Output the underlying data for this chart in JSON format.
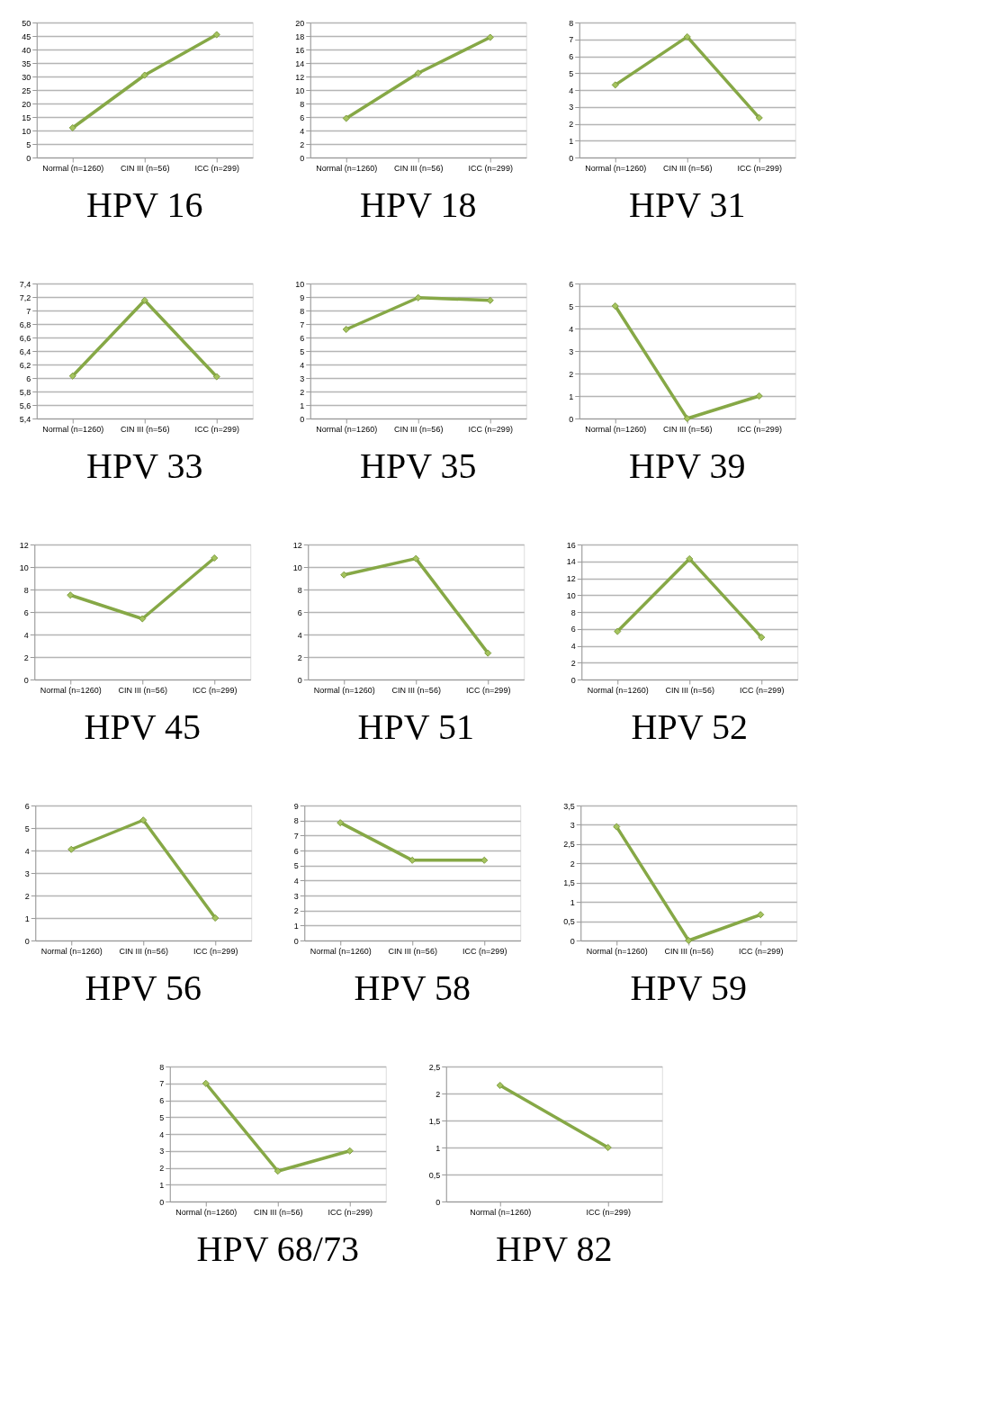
{
  "chart_data": [
    {
      "type": "line",
      "title": "HPV 16",
      "categories": [
        "Normal (n=1260)",
        "CIN III (n=56)",
        "ICC (n=299)"
      ],
      "values": [
        11,
        30.5,
        45.5
      ],
      "color": "#86a846",
      "ylim": [
        0,
        50
      ],
      "yticks": [
        0,
        5,
        10,
        15,
        20,
        25,
        30,
        35,
        40,
        45,
        50
      ],
      "grid": "y",
      "marker": "diamond",
      "line_style": "solid"
    },
    {
      "type": "line",
      "title": "HPV 18",
      "categories": [
        "Normal (n=1260)",
        "CIN III (n=56)",
        "ICC (n=299)"
      ],
      "values": [
        5.8,
        12.5,
        17.8
      ],
      "color": "#86a846",
      "ylim": [
        0,
        20
      ],
      "yticks": [
        0,
        2,
        4,
        6,
        8,
        10,
        12,
        14,
        16,
        18,
        20
      ],
      "grid": "y",
      "marker": "diamond",
      "line_style": "solid"
    },
    {
      "type": "line",
      "title": "HPV 31",
      "categories": [
        "Normal (n=1260)",
        "CIN III (n=56)",
        "ICC (n=299)"
      ],
      "values": [
        4.3,
        7.15,
        2.35
      ],
      "color": "#86a846",
      "ylim": [
        0,
        8
      ],
      "yticks": [
        0,
        1,
        2,
        3,
        4,
        5,
        6,
        7,
        8
      ],
      "grid": "y",
      "marker": "diamond",
      "line_style": "solid"
    },
    {
      "type": "line",
      "title": "HPV 33",
      "categories": [
        "Normal (n=1260)",
        "CIN III (n=56)",
        "ICC (n=299)"
      ],
      "values": [
        6.03,
        7.15,
        6.02
      ],
      "color": "#86a846",
      "ylim": [
        5.4,
        7.4
      ],
      "yticks": [
        {
          "value": 5.4,
          "label": "5,4"
        },
        {
          "value": 5.6,
          "label": "5,6"
        },
        {
          "value": 5.8,
          "label": "5,8"
        },
        6,
        {
          "value": 6.2,
          "label": "6,2"
        },
        {
          "value": 6.4,
          "label": "6,4"
        },
        {
          "value": 6.6,
          "label": "6,6"
        },
        {
          "value": 6.8,
          "label": "6,8"
        },
        7,
        {
          "value": 7.2,
          "label": "7,2"
        },
        {
          "value": 7.4,
          "label": "7,4"
        }
      ],
      "grid": "y",
      "marker": "diamond",
      "line_style": "solid"
    },
    {
      "type": "line",
      "title": "HPV 35",
      "categories": [
        "Normal (n=1260)",
        "CIN III (n=56)",
        "ICC (n=299)"
      ],
      "values": [
        6.6,
        8.95,
        8.75
      ],
      "color": "#86a846",
      "ylim": [
        0,
        10
      ],
      "yticks": [
        0,
        1,
        2,
        3,
        4,
        5,
        6,
        7,
        8,
        9,
        10
      ],
      "grid": "y",
      "marker": "diamond",
      "line_style": "solid"
    },
    {
      "type": "line",
      "title": "HPV 39",
      "categories": [
        "Normal (n=1260)",
        "CIN III (n=56)",
        "ICC (n=299)"
      ],
      "values": [
        5,
        0,
        1
      ],
      "color": "#86a846",
      "ylim": [
        0,
        6
      ],
      "yticks": [
        0,
        1,
        2,
        3,
        4,
        5,
        6
      ],
      "grid": "y",
      "marker": "diamond",
      "line_style": "solid"
    },
    {
      "type": "line",
      "title": "HPV 45",
      "categories": [
        "Normal (n=1260)",
        "CIN III (n=56)",
        "ICC (n=299)"
      ],
      "values": [
        7.5,
        5.4,
        10.8
      ],
      "color": "#86a846",
      "ylim": [
        0,
        12
      ],
      "yticks": [
        0,
        2,
        4,
        6,
        8,
        10,
        12
      ],
      "grid": "y",
      "marker": "diamond",
      "line_style": "solid"
    },
    {
      "type": "line",
      "title": "HPV 51",
      "categories": [
        "Normal (n=1260)",
        "CIN III (n=56)",
        "ICC (n=299)"
      ],
      "values": [
        9.3,
        10.75,
        2.35
      ],
      "color": "#86a846",
      "ylim": [
        0,
        12
      ],
      "yticks": [
        0,
        2,
        4,
        6,
        8,
        10,
        12
      ],
      "grid": "y",
      "marker": "diamond",
      "line_style": "solid"
    },
    {
      "type": "line",
      "title": "HPV 52",
      "categories": [
        "Normal (n=1260)",
        "CIN III (n=56)",
        "ICC (n=299)"
      ],
      "values": [
        5.7,
        14.3,
        5
      ],
      "color": "#86a846",
      "ylim": [
        0,
        16
      ],
      "yticks": [
        0,
        2,
        4,
        6,
        8,
        10,
        12,
        14,
        16
      ],
      "grid": "y",
      "marker": "diamond",
      "line_style": "solid"
    },
    {
      "type": "line",
      "title": "HPV 56",
      "categories": [
        "Normal (n=1260)",
        "CIN III (n=56)",
        "ICC (n=299)"
      ],
      "values": [
        4.05,
        5.35,
        1
      ],
      "color": "#86a846",
      "ylim": [
        0,
        6
      ],
      "yticks": [
        0,
        1,
        2,
        3,
        4,
        5,
        6
      ],
      "grid": "y",
      "marker": "diamond",
      "line_style": "solid"
    },
    {
      "type": "line",
      "title": "HPV 58",
      "categories": [
        "Normal (n=1260)",
        "CIN III (n=56)",
        "ICC (n=299)"
      ],
      "values": [
        7.85,
        5.35,
        5.35
      ],
      "color": "#86a846",
      "ylim": [
        0,
        9
      ],
      "yticks": [
        0,
        1,
        2,
        3,
        4,
        5,
        6,
        7,
        8,
        9
      ],
      "grid": "y",
      "marker": "diamond",
      "line_style": "solid"
    },
    {
      "type": "line",
      "title": "HPV 59",
      "categories": [
        "Normal (n=1260)",
        "CIN III (n=56)",
        "ICC (n=299)"
      ],
      "values": [
        2.95,
        0,
        0.67
      ],
      "color": "#86a846",
      "ylim": [
        0,
        3.5
      ],
      "yticks": [
        0,
        {
          "value": 0.5,
          "label": "0,5"
        },
        1,
        {
          "value": 1.5,
          "label": "1,5"
        },
        2,
        {
          "value": 2.5,
          "label": "2,5"
        },
        3,
        {
          "value": 3.5,
          "label": "3,5"
        }
      ],
      "grid": "y",
      "marker": "diamond",
      "line_style": "solid"
    },
    {
      "type": "line",
      "title": "HPV 68/73",
      "categories": [
        "Normal (n=1260)",
        "CIN III (n=56)",
        "ICC (n=299)"
      ],
      "values": [
        7,
        1.8,
        3
      ],
      "color": "#86a846",
      "ylim": [
        0,
        8
      ],
      "yticks": [
        0,
        1,
        2,
        3,
        4,
        5,
        6,
        7,
        8
      ],
      "grid": "y",
      "marker": "diamond",
      "line_style": "solid"
    },
    {
      "type": "line",
      "title": "HPV 82",
      "categories": [
        "Normal (n=1260)",
        "ICC (n=299)"
      ],
      "values": [
        2.15,
        1
      ],
      "color": "#86a846",
      "ylim": [
        0,
        2.5
      ],
      "yticks": [
        0,
        {
          "value": 0.5,
          "label": "0,5"
        },
        1,
        {
          "value": 1.5,
          "label": "1,5"
        },
        2,
        {
          "value": 2.5,
          "label": "2,5"
        }
      ],
      "grid": "y",
      "marker": "diamond",
      "line_style": "solid"
    }
  ]
}
